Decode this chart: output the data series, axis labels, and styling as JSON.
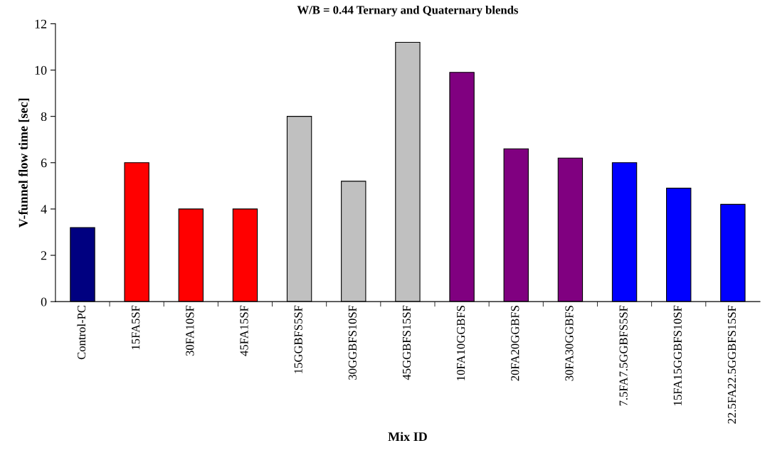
{
  "chart_data": {
    "type": "bar",
    "title": "W/B = 0.44 Ternary and Quaternary blends",
    "xlabel": "Mix ID",
    "ylabel": "V-funnel flow time [sec]",
    "categories": [
      "Control-PC",
      "15FA5SF",
      "30FA10SF",
      "45FA15SF",
      "15GGBFS5SF",
      "30GGBFS10SF",
      "45GGBFS15SF",
      "10FA10GGBFS",
      "20FA20GGBFS",
      "30FA30GGBFS",
      "7.5FA7.5GGBFS5SF",
      "15FA15GGBFS10SF",
      "22.5FA22.5GGBFS15SF"
    ],
    "values": [
      3.2,
      6.0,
      4.0,
      4.0,
      8.0,
      5.2,
      11.2,
      9.9,
      6.6,
      6.2,
      6.0,
      4.9,
      4.2
    ],
    "colors": [
      "#000080",
      "#ff0000",
      "#ff0000",
      "#ff0000",
      "#c0c0c0",
      "#c0c0c0",
      "#c0c0c0",
      "#800080",
      "#800080",
      "#800080",
      "#0000ff",
      "#0000ff",
      "#0000ff"
    ],
    "ylim": [
      0,
      12
    ],
    "yticks": [
      0,
      2,
      4,
      6,
      8,
      10,
      12
    ],
    "grid": false,
    "legend": false
  }
}
